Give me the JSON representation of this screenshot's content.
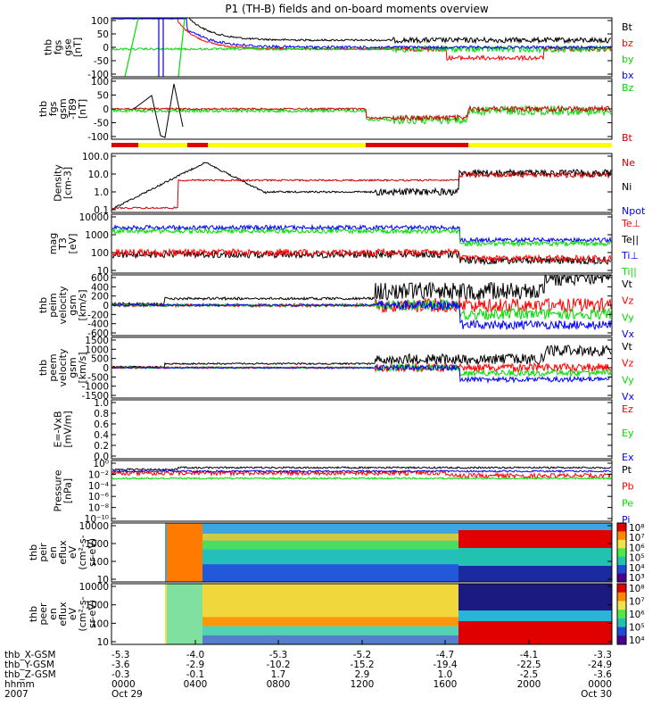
{
  "title": "P1 (TH-B) fields and on-board moments overview",
  "chart_data": {
    "type": "line",
    "title": "P1 (TH-B) fields and on-board moments overview",
    "x_range": [
      "2007-10-29 00:00",
      "2007-10-30 00:00"
    ],
    "panels": [
      {
        "id": "fgs-gse",
        "ylabel": [
          "thb",
          "fgs",
          "gse",
          "[nT]"
        ],
        "ylim": [
          -100,
          100
        ],
        "ticks": [
          "100",
          "50",
          "0",
          "-50",
          "-100"
        ],
        "legend": [
          {
            "label": "Bt",
            "color": "#000000"
          },
          {
            "label": "bz",
            "color": "#ff0000"
          },
          {
            "label": "by",
            "color": "#00dd00"
          },
          {
            "label": "bx",
            "color": "#0000ff"
          }
        ]
      },
      {
        "id": "fgs-gsm",
        "ylabel": [
          "thb",
          "fgs",
          "gsm",
          "-T89",
          "[nT]"
        ],
        "ylim": [
          -120,
          120
        ],
        "ticks": [
          "100",
          "50",
          "0",
          "-50",
          "-100"
        ],
        "legend": [
          {
            "label": "Bz",
            "color": "#00dd00"
          },
          {
            "label": "Bt",
            "color": "#cc0000"
          }
        ]
      },
      {
        "id": "density",
        "ylabel": [
          "Density",
          "[cm-3]"
        ],
        "ylim": [
          0.1,
          300
        ],
        "scale": "log",
        "ticks": [
          "100.0",
          "10.0",
          "1.0",
          "0.1"
        ],
        "legend": [
          {
            "label": "Ne",
            "color": "#cc0000"
          },
          {
            "label": "Ni",
            "color": "#000000"
          },
          {
            "label": "Npot",
            "color": "#0000ff"
          }
        ]
      },
      {
        "id": "temperature",
        "ylabel": [
          "mag",
          "T3",
          "[eV]"
        ],
        "ylim": [
          10,
          10000
        ],
        "scale": "log",
        "ticks": [
          "10000",
          "1000",
          "100",
          "10"
        ],
        "legend": [
          {
            "label": "Te⊥",
            "color": "#ff0000"
          },
          {
            "label": "Te||",
            "color": "#000000"
          },
          {
            "label": "Ti⊥",
            "color": "#0000ff"
          },
          {
            "label": "Ti||",
            "color": "#00dd00"
          }
        ]
      },
      {
        "id": "ion-velocity",
        "ylabel": [
          "thb",
          "peim",
          "velocity",
          "gsm",
          "[km/s]"
        ],
        "ylim": [
          -600,
          600
        ],
        "ticks": [
          "600",
          "400",
          "200",
          "0",
          "-200",
          "-400",
          "-600"
        ],
        "legend": [
          {
            "label": "Vt",
            "color": "#000000"
          },
          {
            "label": "Vz",
            "color": "#ff0000"
          },
          {
            "label": "Vy",
            "color": "#00dd00"
          },
          {
            "label": "Vx",
            "color": "#0000ff"
          }
        ]
      },
      {
        "id": "electron-velocity",
        "ylabel": [
          "thb",
          "peem",
          "velocity",
          "gsm",
          "[km/s]"
        ],
        "ylim": [
          -1500,
          1500
        ],
        "ticks": [
          "1500",
          "1000",
          "500",
          "0",
          "-500",
          "-1000",
          "-1500"
        ],
        "legend": [
          {
            "label": "Vt",
            "color": "#000000"
          },
          {
            "label": "Vz",
            "color": "#ff0000"
          },
          {
            "label": "Vy",
            "color": "#00dd00"
          },
          {
            "label": "Vx",
            "color": "#0000ff"
          }
        ]
      },
      {
        "id": "e-field",
        "ylabel": [
          "E=-VxB",
          "[mV/m]"
        ],
        "ylim": [
          0,
          1
        ],
        "ticks": [
          "1.0",
          "0.8",
          "0.6",
          "0.4",
          "0.2",
          "0.0"
        ],
        "legend": [
          {
            "label": "Ez",
            "color": "#ff0000"
          },
          {
            "label": "Ey",
            "color": "#00dd00"
          },
          {
            "label": "Ex",
            "color": "#0000ff"
          }
        ]
      },
      {
        "id": "pressure",
        "ylabel": [
          "Pressure",
          "[nPa]"
        ],
        "ylim": [
          1e-10,
          10
        ],
        "scale": "log",
        "ticks": [
          "10⁰",
          "10⁻²",
          "10⁻⁴",
          "10⁻⁶",
          "10⁻⁸",
          "10⁻¹⁰"
        ],
        "legend": [
          {
            "label": "Pt",
            "color": "#000000"
          },
          {
            "label": "Pb",
            "color": "#ff0000"
          },
          {
            "label": "Pe",
            "color": "#00dd00"
          },
          {
            "label": "Pi",
            "color": "#0000ff"
          }
        ]
      },
      {
        "id": "ion-spectrogram",
        "type": "heatmap",
        "ylabel": [
          "thb",
          "peir",
          "en",
          "eflux",
          "eV",
          "(cm²-s-",
          "sr-eV)"
        ],
        "ticks": [
          "10000",
          "1000",
          "100",
          "10"
        ],
        "colorbar_ticks": [
          "10⁸",
          "10⁷",
          "10⁶",
          "10⁵",
          "10⁴",
          "10³"
        ]
      },
      {
        "id": "electron-spectrogram",
        "type": "heatmap",
        "ylabel": [
          "thb",
          "peer",
          "en",
          "eflux",
          "eV",
          "(cm²-s-",
          "sr-eV)"
        ],
        "ticks": [
          "10000",
          "1000",
          "100",
          "10"
        ],
        "colorbar_ticks": [
          "10⁸",
          "10⁷",
          "10⁶",
          "10⁵",
          "10⁴"
        ]
      }
    ],
    "x_axis": {
      "row_labels": [
        "thb_X-GSM",
        "thb_Y-GSM",
        "thb_Z-GSM",
        "hhmm",
        "2007"
      ],
      "ticks": [
        {
          "x": "X-GSM",
          "values": [
            "-5.3",
            "-4.0",
            "-5.3",
            "-5.2",
            "-4.7",
            "-4.1",
            "-3.3"
          ]
        },
        {
          "x": "Y-GSM",
          "values": [
            "-3.6",
            "-2.9",
            "-10.2",
            "-15.2",
            "-19.4",
            "-22.5",
            "-24.9"
          ]
        },
        {
          "x": "Z-GSM",
          "values": [
            "-0.3",
            "-0.1",
            "1.7",
            "2.9",
            "1.0",
            "-2.5",
            "-3.6"
          ]
        },
        {
          "x": "hhmm",
          "values": [
            "0000",
            "0400",
            "0800",
            "1200",
            "1600",
            "2000",
            "0000"
          ]
        },
        {
          "x": "date",
          "values": [
            "Oct 29",
            "",
            "",
            "",
            "",
            "",
            "Oct 30"
          ]
        }
      ]
    }
  }
}
